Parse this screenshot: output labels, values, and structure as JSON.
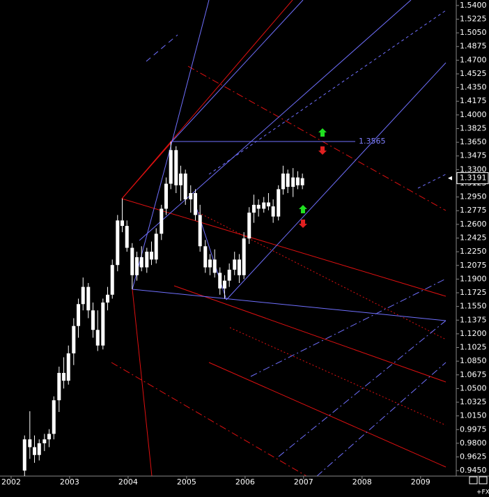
{
  "chart_data": {
    "type": "candlestick",
    "x": [
      2002.23,
      2002.32,
      2002.4,
      2002.48,
      2002.57,
      2002.65,
      2002.73,
      2002.82,
      2002.9,
      2002.98,
      2003.07,
      2003.15,
      2003.23,
      2003.32,
      2003.4,
      2003.48,
      2003.57,
      2003.65,
      2003.73,
      2003.82,
      2003.9,
      2003.98,
      2004.07,
      2004.15,
      2004.23,
      2004.32,
      2004.4,
      2004.48,
      2004.57,
      2004.65,
      2004.73,
      2004.82,
      2004.9,
      2004.98,
      2005.07,
      2005.15,
      2005.23,
      2005.32,
      2005.4,
      2005.48,
      2005.57,
      2005.65,
      2005.73,
      2005.82,
      2005.9,
      2005.98,
      2006.07,
      2006.15,
      2006.23,
      2006.32,
      2006.4,
      2006.48,
      2006.57,
      2006.65,
      2006.73,
      2006.82,
      2006.9,
      2006.98
    ],
    "open": [
      0.945,
      0.985,
      0.975,
      0.965,
      0.98,
      0.985,
      0.992,
      1.035,
      1.07,
      1.06,
      1.095,
      1.13,
      1.158,
      1.18,
      1.15,
      1.125,
      1.105,
      1.16,
      1.17,
      1.208,
      1.265,
      1.258,
      1.23,
      1.195,
      1.218,
      1.205,
      1.225,
      1.215,
      1.248,
      1.28,
      1.312,
      1.355,
      1.31,
      1.325,
      1.292,
      1.3,
      1.272,
      1.232,
      1.205,
      1.215,
      1.198,
      1.178,
      1.188,
      1.202,
      1.215,
      1.195,
      1.242,
      1.275,
      1.285,
      1.28,
      1.288,
      1.283,
      1.27,
      1.305,
      1.325,
      1.308,
      1.32,
      1.31
    ],
    "high": [
      0.99,
      1.021,
      0.99,
      0.985,
      0.992,
      0.998,
      1.04,
      1.078,
      1.09,
      1.105,
      1.14,
      1.165,
      1.192,
      1.185,
      1.16,
      1.15,
      1.165,
      1.18,
      1.215,
      1.272,
      1.293,
      1.265,
      1.236,
      1.225,
      1.232,
      1.23,
      1.238,
      1.255,
      1.285,
      1.32,
      1.366,
      1.36,
      1.335,
      1.33,
      1.31,
      1.305,
      1.285,
      1.24,
      1.222,
      1.228,
      1.205,
      1.195,
      1.21,
      1.225,
      1.222,
      1.25,
      1.282,
      1.298,
      1.292,
      1.295,
      1.3,
      1.292,
      1.31,
      1.335,
      1.33,
      1.332,
      1.328,
      1.325
    ],
    "low": [
      0.938,
      0.96,
      0.955,
      0.958,
      0.97,
      0.975,
      0.985,
      1.02,
      1.05,
      1.055,
      1.08,
      1.115,
      1.15,
      1.14,
      1.115,
      1.098,
      1.1,
      1.15,
      1.165,
      1.2,
      1.25,
      1.225,
      1.177,
      1.188,
      1.2,
      1.198,
      1.208,
      1.21,
      1.24,
      1.272,
      1.305,
      1.3,
      1.29,
      1.285,
      1.275,
      1.265,
      1.225,
      1.198,
      1.195,
      1.192,
      1.17,
      1.165,
      1.18,
      1.195,
      1.185,
      1.19,
      1.235,
      1.262,
      1.27,
      1.275,
      1.278,
      1.262,
      1.265,
      1.298,
      1.3,
      1.295,
      1.305,
      1.305
    ],
    "close": [
      0.985,
      0.975,
      0.965,
      0.98,
      0.985,
      0.992,
      1.035,
      1.07,
      1.06,
      1.095,
      1.13,
      1.158,
      1.18,
      1.15,
      1.125,
      1.105,
      1.16,
      1.17,
      1.208,
      1.265,
      1.258,
      1.23,
      1.195,
      1.218,
      1.205,
      1.225,
      1.215,
      1.248,
      1.28,
      1.312,
      1.355,
      1.31,
      1.325,
      1.292,
      1.3,
      1.272,
      1.232,
      1.205,
      1.215,
      1.198,
      1.178,
      1.188,
      1.202,
      1.215,
      1.195,
      1.242,
      1.275,
      1.285,
      1.28,
      1.288,
      1.283,
      1.27,
      1.305,
      1.325,
      1.308,
      1.32,
      1.31,
      1.3191
    ],
    "color": "#ffffff",
    "last_price": 1.3191,
    "annotation": "1.3565",
    "footer": "+FX",
    "xlim": [
      2001.81,
      2009.61
    ],
    "xticks": [
      2002,
      2003,
      2004,
      2005,
      2006,
      2007,
      2008,
      2009
    ],
    "ylim": [
      0.938,
      1.547
    ],
    "yticks": [
      {
        "value": 1.54,
        "label": "1.5400"
      },
      1.5225,
      {
        "value": 1.505,
        "label": "1.5050"
      },
      1.4875,
      {
        "value": 1.47,
        "label": "1.4700"
      },
      1.4525,
      {
        "value": 1.435,
        "label": "1.4350"
      },
      1.4175,
      {
        "value": 1.4,
        "label": "1.4000"
      },
      1.3825,
      {
        "value": 1.365,
        "label": "1.3650"
      },
      1.3475,
      {
        "value": 1.33,
        "label": "1.3300"
      },
      1.3125,
      {
        "value": 1.295,
        "label": "1.2950"
      },
      1.2775,
      {
        "value": 1.26,
        "label": "1.2600"
      },
      1.2425,
      {
        "value": 1.225,
        "label": "1.2250"
      },
      1.2075,
      {
        "value": 1.19,
        "label": "1.1900"
      },
      1.1725,
      {
        "value": 1.155,
        "label": "1.1550"
      },
      1.1375,
      {
        "value": 1.12,
        "label": "1.1200"
      },
      1.1025,
      {
        "value": 1.085,
        "label": "1.0850"
      },
      1.0675,
      {
        "value": 1.05,
        "label": "1.0500"
      },
      1.0325,
      {
        "value": 1.015,
        "label": "1.0150"
      },
      0.9975,
      {
        "value": 0.98,
        "label": "0.9800"
      },
      0.9625,
      {
        "value": 0.945,
        "label": "0.9450"
      }
    ],
    "grid": false
  }
}
